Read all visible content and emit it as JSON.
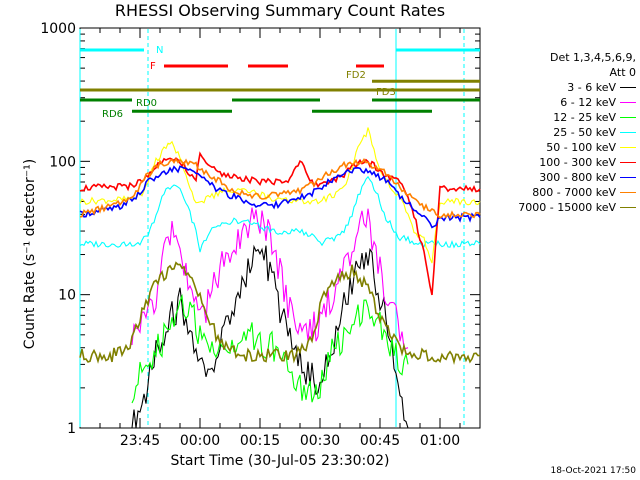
{
  "chart_data": {
    "type": "line",
    "title": "RHESSI Observing Summary Count Rates",
    "xlabel": "Start Time (30-Jul-05 23:30:02)",
    "ylabel": "Count Rate (s⁻¹ detector⁻¹)",
    "yscale": "log",
    "ylim": [
      1,
      1000
    ],
    "xlim": [
      0,
      100
    ],
    "y_ticks": [
      "1",
      "10",
      "100",
      "1000"
    ],
    "x_ticks": [
      {
        "label": "23:45",
        "x": 15
      },
      {
        "label": "00:00",
        "x": 30
      },
      {
        "label": "00:15",
        "x": 45
      },
      {
        "label": "00:30",
        "x": 60
      },
      {
        "label": "00:45",
        "x": 75
      },
      {
        "label": "01:00",
        "x": 90
      }
    ],
    "legend": {
      "header": [
        "Det 1,3,4,5,6,9,",
        "Att 0"
      ],
      "placement": "right"
    },
    "series": [
      {
        "name": "3 - 6 keV",
        "color": "#000000",
        "values": [
          [
            13,
            1.0
          ],
          [
            17,
            2.0
          ],
          [
            19,
            4.0
          ],
          [
            22,
            6.0
          ],
          [
            25,
            9.0
          ],
          [
            28,
            5.0
          ],
          [
            30,
            3.0
          ],
          [
            33,
            3.0
          ],
          [
            36,
            5.0
          ],
          [
            40,
            10.0
          ],
          [
            43,
            20.0
          ],
          [
            46,
            21.0
          ],
          [
            49,
            10.0
          ],
          [
            52,
            5.0
          ],
          [
            55,
            3.0
          ],
          [
            60,
            2.0
          ],
          [
            63,
            4.0
          ],
          [
            66,
            8.0
          ],
          [
            69,
            15.0
          ],
          [
            72,
            20.0
          ],
          [
            75,
            10.0
          ],
          [
            78,
            4.0
          ],
          [
            80,
            2.0
          ],
          [
            82,
            1.0
          ]
        ]
      },
      {
        "name": "6 - 12 keV",
        "color": "#ff00ff",
        "values": [
          [
            13,
            5.0
          ],
          [
            17,
            7.0
          ],
          [
            19,
            10.0
          ],
          [
            22,
            30.0
          ],
          [
            25,
            22.0
          ],
          [
            28,
            10.0
          ],
          [
            30,
            6.0
          ],
          [
            33,
            10.0
          ],
          [
            36,
            20.0
          ],
          [
            40,
            25.0
          ],
          [
            43,
            40.0
          ],
          [
            46,
            35.0
          ],
          [
            49,
            20.0
          ],
          [
            52,
            8.0
          ],
          [
            55,
            5.0
          ],
          [
            60,
            6.0
          ],
          [
            63,
            10.0
          ],
          [
            66,
            15.0
          ],
          [
            69,
            30.0
          ],
          [
            72,
            35.0
          ],
          [
            75,
            15.0
          ],
          [
            78,
            8.0
          ],
          [
            80,
            5.0
          ],
          [
            82,
            4.0
          ]
        ]
      },
      {
        "name": "12 - 25 keV",
        "color": "#00ff00",
        "values": [
          [
            13,
            2.0
          ],
          [
            17,
            3.0
          ],
          [
            19,
            4.0
          ],
          [
            22,
            5.0
          ],
          [
            25,
            8.0
          ],
          [
            28,
            7.0
          ],
          [
            30,
            5.0
          ],
          [
            33,
            4.0
          ],
          [
            36,
            4.0
          ],
          [
            40,
            4.0
          ],
          [
            43,
            5.0
          ],
          [
            46,
            4.0
          ],
          [
            49,
            4.0
          ],
          [
            52,
            3.0
          ],
          [
            55,
            2.0
          ],
          [
            60,
            2.0
          ],
          [
            63,
            4.0
          ],
          [
            66,
            5.0
          ],
          [
            69,
            7.0
          ],
          [
            72,
            8.0
          ],
          [
            75,
            6.0
          ],
          [
            78,
            4.0
          ],
          [
            80,
            3.0
          ],
          [
            82,
            3.0
          ]
        ]
      },
      {
        "name": "25 - 50 keV",
        "color": "#00ffff",
        "values": [
          [
            0,
            24.0
          ],
          [
            12,
            24.0
          ],
          [
            15,
            25.0
          ],
          [
            17,
            28.0
          ],
          [
            19,
            40.0
          ],
          [
            21,
            60.0
          ],
          [
            23,
            67.0
          ],
          [
            25,
            65.0
          ],
          [
            27,
            45.0
          ],
          [
            29,
            30.0
          ],
          [
            30,
            22.0
          ],
          [
            33,
            30.0
          ],
          [
            36,
            35.0
          ],
          [
            40,
            36.0
          ],
          [
            43,
            35.0
          ],
          [
            46,
            32.0
          ],
          [
            49,
            30.0
          ],
          [
            52,
            30.0
          ],
          [
            55,
            30.0
          ],
          [
            58,
            28.0
          ],
          [
            60,
            24.0
          ],
          [
            63,
            26.0
          ],
          [
            66,
            30.0
          ],
          [
            68,
            40.0
          ],
          [
            70,
            60.0
          ],
          [
            72,
            75.0
          ],
          [
            74,
            60.0
          ],
          [
            76,
            40.0
          ],
          [
            78,
            32.0
          ],
          [
            80,
            27.0
          ],
          [
            82,
            26.0
          ],
          [
            86,
            24.0
          ],
          [
            94,
            24.0
          ],
          [
            100,
            24.0
          ]
        ]
      },
      {
        "name": "50 - 100 keV",
        "color": "#ffff00",
        "values": [
          [
            0,
            50.0
          ],
          [
            12,
            52.0
          ],
          [
            15,
            55.0
          ],
          [
            17,
            70.0
          ],
          [
            19,
            100.0
          ],
          [
            21,
            125.0
          ],
          [
            23,
            135.0
          ],
          [
            25,
            110.0
          ],
          [
            27,
            70.0
          ],
          [
            29,
            50.0
          ],
          [
            30,
            50.0
          ],
          [
            33,
            55.0
          ],
          [
            36,
            60.0
          ],
          [
            40,
            62.0
          ],
          [
            43,
            60.0
          ],
          [
            46,
            55.0
          ],
          [
            49,
            52.0
          ],
          [
            52,
            50.0
          ],
          [
            55,
            50.0
          ],
          [
            58,
            50.0
          ],
          [
            60,
            50.0
          ],
          [
            63,
            55.0
          ],
          [
            66,
            65.0
          ],
          [
            68,
            90.0
          ],
          [
            70,
            140.0
          ],
          [
            72,
            170.0
          ],
          [
            74,
            110.0
          ],
          [
            76,
            75.0
          ],
          [
            78,
            60.0
          ],
          [
            80,
            55.0
          ],
          [
            82,
            40.0
          ],
          [
            84,
            28.0
          ],
          [
            86,
            26.0
          ],
          [
            88,
            18.0
          ],
          [
            90,
            50.0
          ],
          [
            94,
            50.0
          ],
          [
            100,
            50.0
          ]
        ]
      },
      {
        "name": "100 - 300 keV",
        "color": "#ff0000",
        "values": [
          [
            0,
            63.0
          ],
          [
            12,
            65.0
          ],
          [
            15,
            70.0
          ],
          [
            17,
            80.0
          ],
          [
            19,
            90.0
          ],
          [
            21,
            100.0
          ],
          [
            23,
            105.0
          ],
          [
            25,
            100.0
          ],
          [
            27,
            85.0
          ],
          [
            29,
            75.0
          ],
          [
            30,
            110.0
          ],
          [
            33,
            90.0
          ],
          [
            36,
            80.0
          ],
          [
            40,
            75.0
          ],
          [
            43,
            72.0
          ],
          [
            46,
            70.0
          ],
          [
            49,
            70.0
          ],
          [
            52,
            72.0
          ],
          [
            55,
            100.0
          ],
          [
            58,
            70.0
          ],
          [
            60,
            65.0
          ],
          [
            63,
            70.0
          ],
          [
            66,
            80.0
          ],
          [
            68,
            90.0
          ],
          [
            70,
            100.0
          ],
          [
            72,
            98.0
          ],
          [
            74,
            90.0
          ],
          [
            76,
            80.0
          ],
          [
            78,
            75.0
          ],
          [
            80,
            70.0
          ],
          [
            82,
            55.0
          ],
          [
            84,
            35.0
          ],
          [
            86,
            20.0
          ],
          [
            88,
            10.0
          ],
          [
            90,
            63.0
          ],
          [
            94,
            62.0
          ],
          [
            100,
            62.0
          ]
        ]
      },
      {
        "name": "300 - 800 keV",
        "color": "#0000ff",
        "values": [
          [
            0,
            40.0
          ],
          [
            10,
            45.0
          ],
          [
            14,
            55.0
          ],
          [
            17,
            70.0
          ],
          [
            20,
            80.0
          ],
          [
            23,
            88.0
          ],
          [
            26,
            88.0
          ],
          [
            29,
            80.0
          ],
          [
            32,
            70.0
          ],
          [
            35,
            60.0
          ],
          [
            38,
            55.0
          ],
          [
            41,
            50.0
          ],
          [
            44,
            48.0
          ],
          [
            47,
            47.0
          ],
          [
            50,
            48.0
          ],
          [
            53,
            50.0
          ],
          [
            56,
            55.0
          ],
          [
            59,
            60.0
          ],
          [
            62,
            70.0
          ],
          [
            65,
            80.0
          ],
          [
            68,
            85.0
          ],
          [
            71,
            85.0
          ],
          [
            74,
            80.0
          ],
          [
            77,
            70.0
          ],
          [
            80,
            55.0
          ],
          [
            83,
            45.0
          ],
          [
            86,
            38.0
          ],
          [
            88,
            32.0
          ],
          [
            90,
            38.0
          ],
          [
            95,
            38.0
          ],
          [
            100,
            38.0
          ]
        ]
      },
      {
        "name": "800 - 7000 keV",
        "color": "#ff8000",
        "values": [
          [
            0,
            40.0
          ],
          [
            10,
            48.0
          ],
          [
            14,
            60.0
          ],
          [
            17,
            80.0
          ],
          [
            20,
            95.0
          ],
          [
            23,
            100.0
          ],
          [
            26,
            100.0
          ],
          [
            29,
            95.0
          ],
          [
            32,
            80.0
          ],
          [
            35,
            70.0
          ],
          [
            38,
            62.0
          ],
          [
            41,
            58.0
          ],
          [
            44,
            55.0
          ],
          [
            47,
            55.0
          ],
          [
            50,
            56.0
          ],
          [
            53,
            58.0
          ],
          [
            56,
            62.0
          ],
          [
            59,
            70.0
          ],
          [
            62,
            80.0
          ],
          [
            65,
            92.0
          ],
          [
            68,
            98.0
          ],
          [
            71,
            98.0
          ],
          [
            74,
            92.0
          ],
          [
            77,
            80.0
          ],
          [
            80,
            65.0
          ],
          [
            83,
            52.0
          ],
          [
            86,
            45.0
          ],
          [
            90,
            40.0
          ],
          [
            95,
            40.0
          ],
          [
            100,
            40.0
          ]
        ]
      },
      {
        "name": "7000 - 15000 keV",
        "color": "#808000",
        "values": [
          [
            0,
            3.5
          ],
          [
            8,
            3.5
          ],
          [
            12,
            4.0
          ],
          [
            14,
            5.5
          ],
          [
            16,
            8.0
          ],
          [
            18,
            11.0
          ],
          [
            20,
            13.0
          ],
          [
            22,
            15.0
          ],
          [
            24,
            16.0
          ],
          [
            26,
            15.0
          ],
          [
            28,
            13.0
          ],
          [
            30,
            10.0
          ],
          [
            32,
            7.0
          ],
          [
            34,
            5.0
          ],
          [
            36,
            4.0
          ],
          [
            40,
            3.5
          ],
          [
            45,
            3.5
          ],
          [
            50,
            3.5
          ],
          [
            54,
            3.5
          ],
          [
            56,
            4.0
          ],
          [
            58,
            5.0
          ],
          [
            60,
            8.0
          ],
          [
            62,
            11.0
          ],
          [
            64,
            13.0
          ],
          [
            66,
            14.0
          ],
          [
            68,
            15.0
          ],
          [
            70,
            13.0
          ],
          [
            72,
            11.0
          ],
          [
            74,
            8.0
          ],
          [
            76,
            6.0
          ],
          [
            78,
            5.0
          ],
          [
            80,
            4.0
          ],
          [
            84,
            3.5
          ],
          [
            90,
            3.5
          ],
          [
            100,
            3.5
          ]
        ]
      }
    ],
    "flag_bars": [
      {
        "label": "N",
        "color": "#00ffff",
        "y": 0.945,
        "segments": [
          [
            0,
            16
          ],
          [
            79,
            100
          ]
        ]
      },
      {
        "label": "F",
        "color": "#ff0000",
        "y": 0.905,
        "segments": [
          [
            21,
            37
          ],
          [
            42,
            52
          ],
          [
            69,
            76
          ]
        ]
      },
      {
        "label": "FD2",
        "color": "#808000",
        "y": 0.867,
        "segments": [
          [
            73,
            100
          ]
        ]
      },
      {
        "label": "FD3",
        "color": "#808000",
        "y": 0.845,
        "segments": [
          [
            0,
            100
          ]
        ]
      },
      {
        "label": "RD0",
        "color": "#008000",
        "y": 0.82,
        "segments": [
          [
            0,
            13
          ],
          [
            38,
            60
          ],
          [
            73,
            100
          ]
        ]
      },
      {
        "label": "RD6",
        "color": "#008000",
        "y": 0.792,
        "segments": [
          [
            13,
            38
          ],
          [
            58,
            88
          ]
        ]
      }
    ],
    "vlines": {
      "color": "#00ffff",
      "solid": [
        0,
        79
      ],
      "dashed": [
        17,
        96
      ]
    }
  },
  "timestamp": "18-Oct-2021 17:50"
}
